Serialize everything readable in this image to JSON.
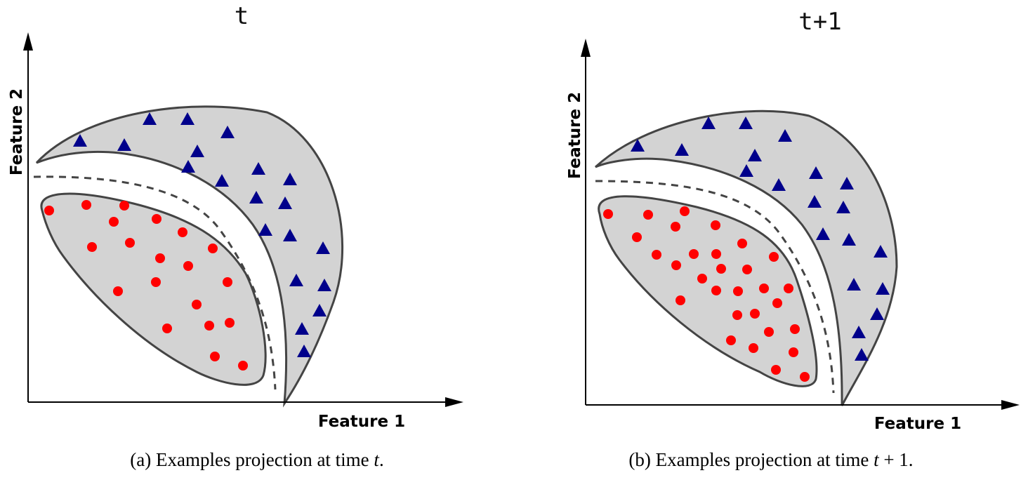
{
  "panels": [
    {
      "title": "t",
      "x_axis_label": "Feature 1",
      "y_axis_label": "Feature 2",
      "caption_prefix": "(a)  Examples projection at time ",
      "caption_var": "t",
      "caption_suffix": ".",
      "circle_count": 21,
      "triangle_count": 20
    },
    {
      "title": "t+1",
      "x_axis_label": "Feature 1",
      "y_axis_label": "Feature 2",
      "caption_prefix": "(b)  Examples projection at time ",
      "caption_var": "t",
      "caption_suffix": " + 1.",
      "circle_count": 32,
      "triangle_count": 22
    }
  ],
  "colors": {
    "region_fill": "#d3d3d3",
    "outline": "#444444",
    "circle": "#ff0000",
    "triangle": "#00008b",
    "axis": "#000000"
  }
}
